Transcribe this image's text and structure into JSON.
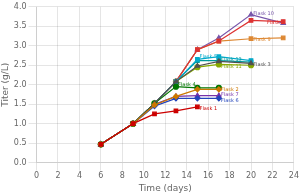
{
  "chart_data": {
    "type": "line",
    "xlabel": "Time (days)",
    "ylabel": "Titer (g/L)",
    "xlim": [
      0,
      24
    ],
    "ylim": [
      0.0,
      4.0
    ],
    "xticks": [
      0,
      2,
      4,
      6,
      8,
      10,
      12,
      14,
      16,
      18,
      20,
      22,
      24
    ],
    "yticks": [
      {
        "value": 0.0,
        "label": "0.0"
      },
      0.5,
      {
        "value": 1.0,
        "label": "1.0"
      },
      1.5,
      {
        "value": 2.0,
        "label": "2.0"
      },
      2.5,
      {
        "value": 3.0,
        "label": "3.0"
      },
      3.5,
      {
        "value": 4.0,
        "label": "4.0"
      }
    ],
    "grid": true,
    "series": [
      {
        "name": "Flask 1",
        "color": "#cc0000",
        "marker": "square",
        "x": [
          6,
          9,
          11,
          13,
          15
        ],
        "values": [
          0.47,
          1.0,
          1.25,
          1.33,
          1.43
        ],
        "label_x": 15.2,
        "label_y": 1.38
      },
      {
        "name": "Flask 2",
        "color": "#cc7700",
        "marker": "diamond",
        "x": [
          6,
          9,
          11,
          13,
          15,
          17
        ],
        "values": [
          0.47,
          1.0,
          1.48,
          1.7,
          1.88,
          1.88
        ],
        "label_x": 17.2,
        "label_y": 1.86
      },
      {
        "name": "Flask 3",
        "color": "#505050",
        "marker": "triangle",
        "x": [
          6,
          9,
          11,
          13,
          15,
          17,
          20
        ],
        "values": [
          0.47,
          1.0,
          1.52,
          2.08,
          2.48,
          2.6,
          2.55
        ],
        "label_x": 20.2,
        "label_y": 2.52
      },
      {
        "name": "Flask 4",
        "color": "#007700",
        "marker": "circle",
        "x": [
          6,
          9,
          11,
          13,
          15,
          17
        ],
        "values": [
          0.47,
          1.0,
          1.52,
          1.95,
          1.92,
          1.92
        ],
        "label_x": 13.2,
        "label_y": 2.0
      },
      {
        "name": "Flask 5",
        "color": "#00aacc",
        "marker": "square",
        "x": [
          6,
          9,
          11,
          13,
          15,
          17,
          20
        ],
        "values": [
          0.47,
          1.0,
          1.52,
          2.08,
          2.65,
          2.72,
          2.62
        ],
        "label_x": 15.2,
        "label_y": 2.72
      },
      {
        "name": "Flask 6",
        "color": "#2244bb",
        "marker": "diamond",
        "x": [
          6,
          9,
          11,
          13,
          15,
          17
        ],
        "values": [
          0.47,
          1.0,
          1.45,
          1.65,
          1.65,
          1.65
        ],
        "label_x": 17.2,
        "label_y": 1.6
      },
      {
        "name": "Flask 7",
        "color": "#7733aa",
        "marker": "triangle",
        "x": [
          6,
          9,
          11,
          13,
          15,
          17
        ],
        "values": [
          0.47,
          1.0,
          1.5,
          1.7,
          1.72,
          1.72
        ],
        "label_x": 17.2,
        "label_y": 1.74
      },
      {
        "name": "Flask 8",
        "color": "#dd3333",
        "marker": "square",
        "x": [
          6,
          9,
          11,
          13,
          15,
          17,
          20,
          23
        ],
        "values": [
          0.47,
          1.0,
          1.52,
          2.08,
          2.9,
          3.12,
          3.65,
          3.62
        ],
        "label_x": 21.5,
        "label_y": 3.6
      },
      {
        "name": "Flask 9",
        "color": "#dd8833",
        "marker": "square",
        "x": [
          6,
          9,
          11,
          13,
          15,
          17,
          20,
          23
        ],
        "values": [
          0.47,
          1.0,
          1.52,
          2.08,
          2.9,
          3.12,
          3.18,
          3.2
        ],
        "label_x": 20.2,
        "label_y": 3.15
      },
      {
        "name": "Flask 10",
        "color": "#7755aa",
        "marker": "triangle",
        "x": [
          6,
          9,
          11,
          13,
          15,
          17,
          20,
          23
        ],
        "values": [
          0.47,
          1.0,
          1.52,
          2.08,
          2.9,
          3.2,
          3.8,
          3.58
        ],
        "label_x": 20.2,
        "label_y": 3.82
      },
      {
        "name": "Flask 11",
        "color": "#88aa00",
        "marker": "circle",
        "x": [
          6,
          9,
          11,
          13,
          15,
          17,
          20
        ],
        "values": [
          0.47,
          1.0,
          1.52,
          2.08,
          2.45,
          2.52,
          2.5
        ],
        "label_x": 17.2,
        "label_y": 2.47
      },
      {
        "name": "Flask 13",
        "color": "#009999",
        "marker": "square",
        "x": [
          6,
          9,
          11,
          13,
          15,
          17,
          20
        ],
        "values": [
          0.47,
          1.0,
          1.52,
          2.08,
          2.62,
          2.62,
          2.58
        ],
        "label_x": 17.2,
        "label_y": 2.63
      }
    ]
  }
}
